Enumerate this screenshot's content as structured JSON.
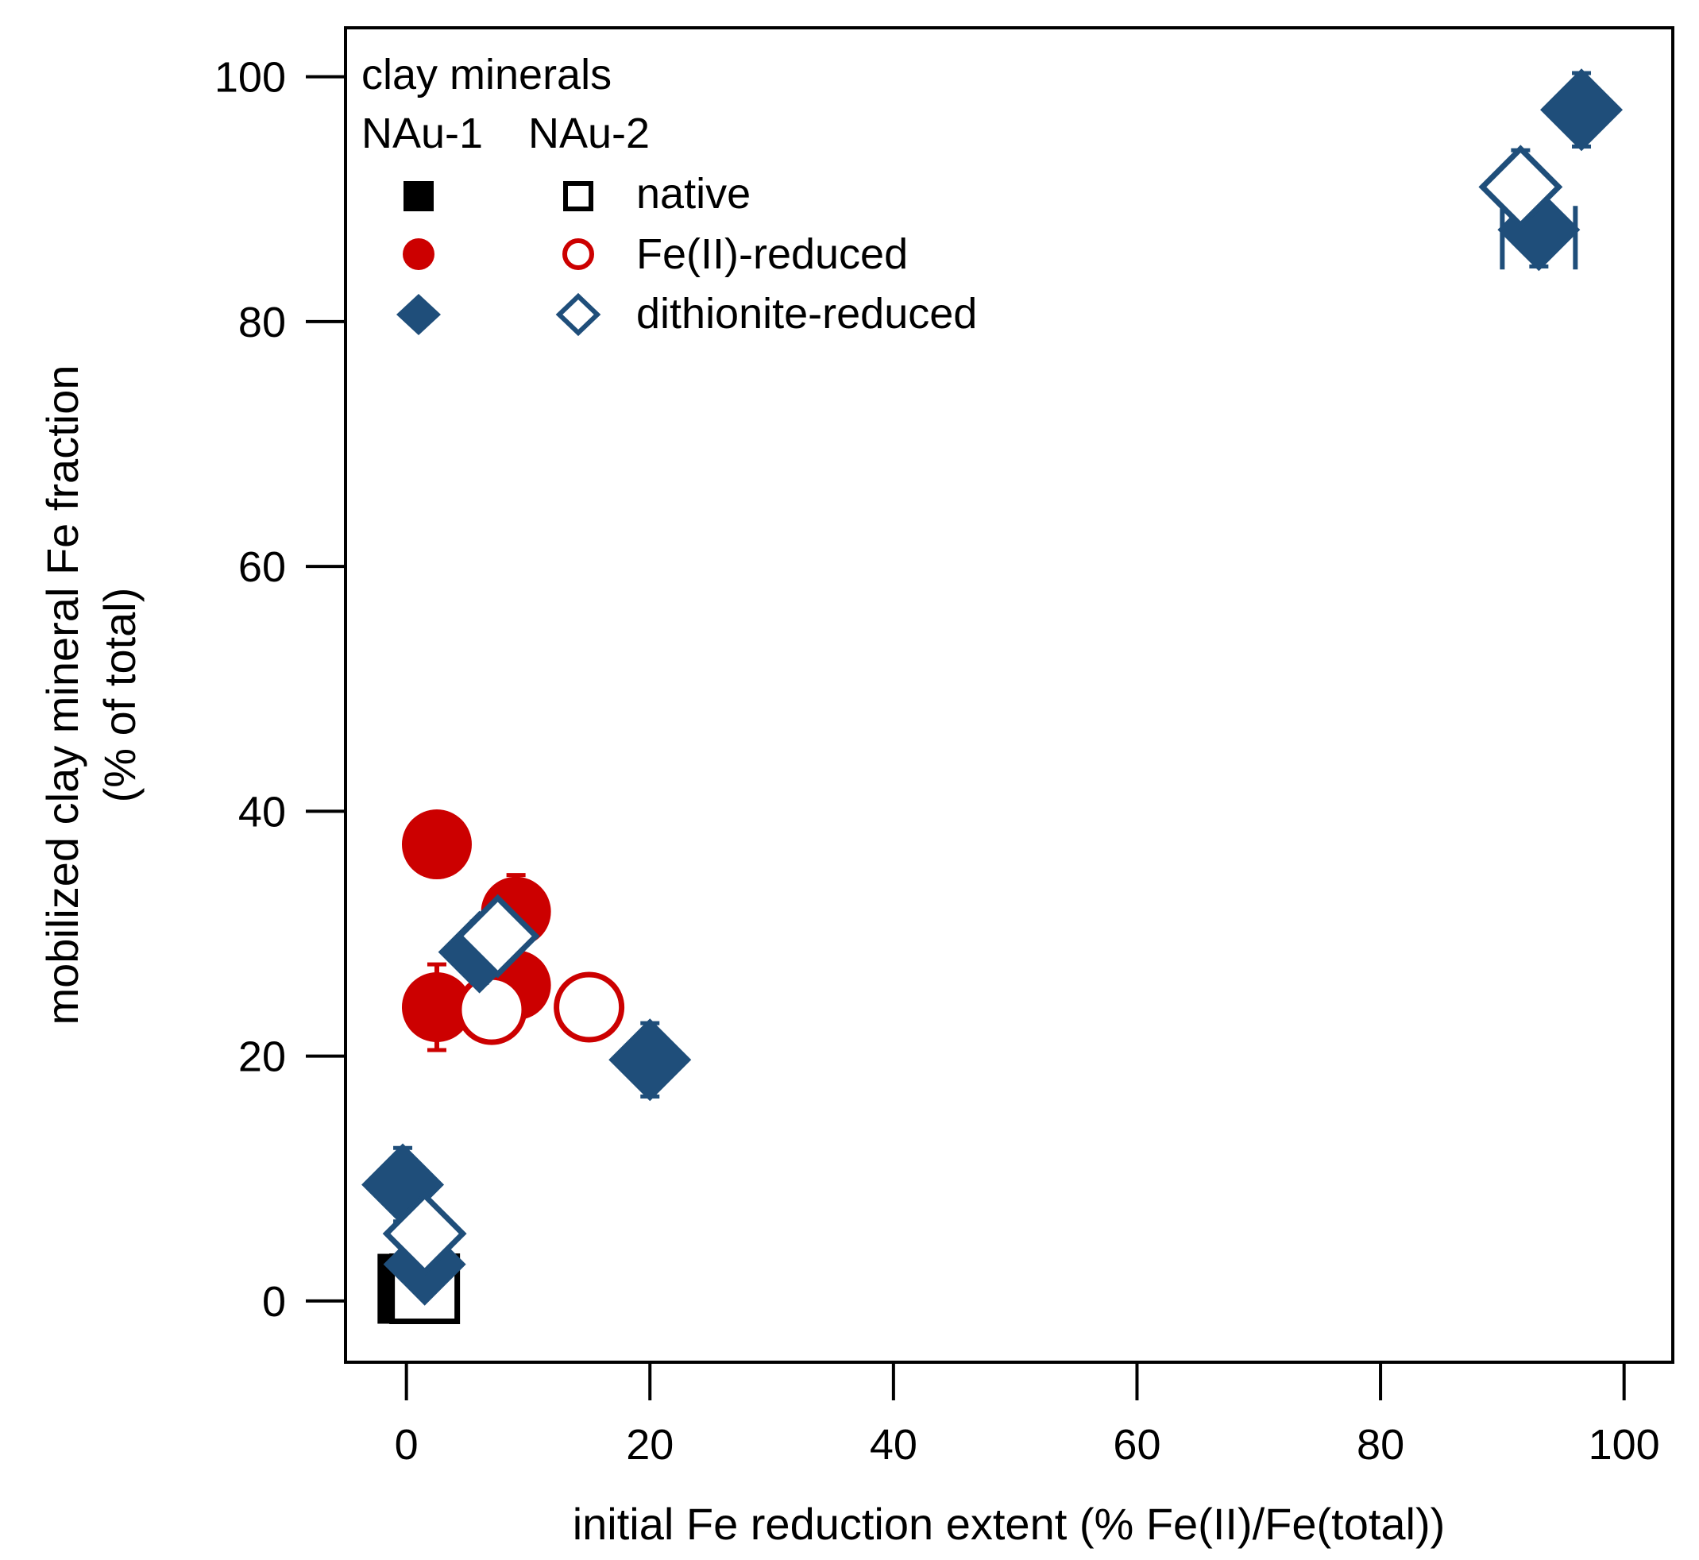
{
  "chart_data": {
    "type": "scatter",
    "xlabel": "initial Fe reduction extent (% Fe(II)/Fe(total))",
    "ylabel_line1": "mobilized clay mineral Fe fraction",
    "ylabel_line2": "(% of total)",
    "xlim": [
      -5,
      104
    ],
    "ylim": [
      -5,
      104
    ],
    "xticks": [
      0,
      20,
      40,
      60,
      80,
      100
    ],
    "yticks": [
      0,
      20,
      40,
      60,
      80,
      100
    ],
    "grid": false,
    "legend": {
      "position": "top-left",
      "title": "clay minerals",
      "col1": "NAu-1",
      "col2": "NAu-2",
      "entries": [
        "native",
        "Fe(II)-reduced",
        "dithionite-reduced"
      ]
    },
    "colors": {
      "native": "#000000",
      "fe2": "#cc0000",
      "dith": "#1f4e7a"
    },
    "series": [
      {
        "name": "NAu-1 native",
        "marker": "square",
        "filled": true,
        "color": "#000000",
        "points": [
          {
            "x": 0.5,
            "y": 1.0,
            "yerr": 2.5
          }
        ]
      },
      {
        "name": "NAu-2 native",
        "marker": "square",
        "filled": false,
        "color": "#000000",
        "points": [
          {
            "x": 1.5,
            "y": 1.0,
            "yerr": 1.5
          }
        ]
      },
      {
        "name": "NAu-1 Fe(II)-reduced",
        "marker": "circle",
        "filled": true,
        "color": "#cc0000",
        "points": [
          {
            "x": 2.5,
            "y": 37.3,
            "yerr": 0
          },
          {
            "x": 9.0,
            "y": 31.8,
            "yerr": 3.0
          },
          {
            "x": 9.0,
            "y": 25.8,
            "yerr": 2.0
          },
          {
            "x": 2.5,
            "y": 24.0,
            "yerr": 3.5
          }
        ]
      },
      {
        "name": "NAu-2 Fe(II)-reduced",
        "marker": "circle",
        "filled": false,
        "color": "#cc0000",
        "points": [
          {
            "x": 7.0,
            "y": 23.8,
            "yerr": 0
          },
          {
            "x": 15.0,
            "y": 24.0,
            "yerr": 0
          }
        ]
      },
      {
        "name": "NAu-1 dithionite-reduced",
        "marker": "diamond",
        "filled": true,
        "color": "#1f4e7a",
        "points": [
          {
            "x": -0.3,
            "y": 9.5,
            "yerr": 3.0
          },
          {
            "x": 1.5,
            "y": 3.0,
            "yerr": 2.0
          },
          {
            "x": 6.0,
            "y": 28.5,
            "yerr": 2.5
          },
          {
            "x": 20.0,
            "y": 19.7,
            "yerr": 3.0
          },
          {
            "x": 93.0,
            "y": 87.5,
            "yerr": 3.0,
            "xerr": 3.0
          },
          {
            "x": 96.5,
            "y": 97.3,
            "yerr": 3.0
          }
        ]
      },
      {
        "name": "NAu-2 dithionite-reduced",
        "marker": "diamond",
        "filled": false,
        "color": "#1f4e7a",
        "points": [
          {
            "x": 1.5,
            "y": 5.5,
            "yerr": 2.0
          },
          {
            "x": 7.5,
            "y": 29.8,
            "yerr": 2.5
          },
          {
            "x": 91.5,
            "y": 91.0,
            "yerr": 3.0
          }
        ]
      }
    ]
  }
}
